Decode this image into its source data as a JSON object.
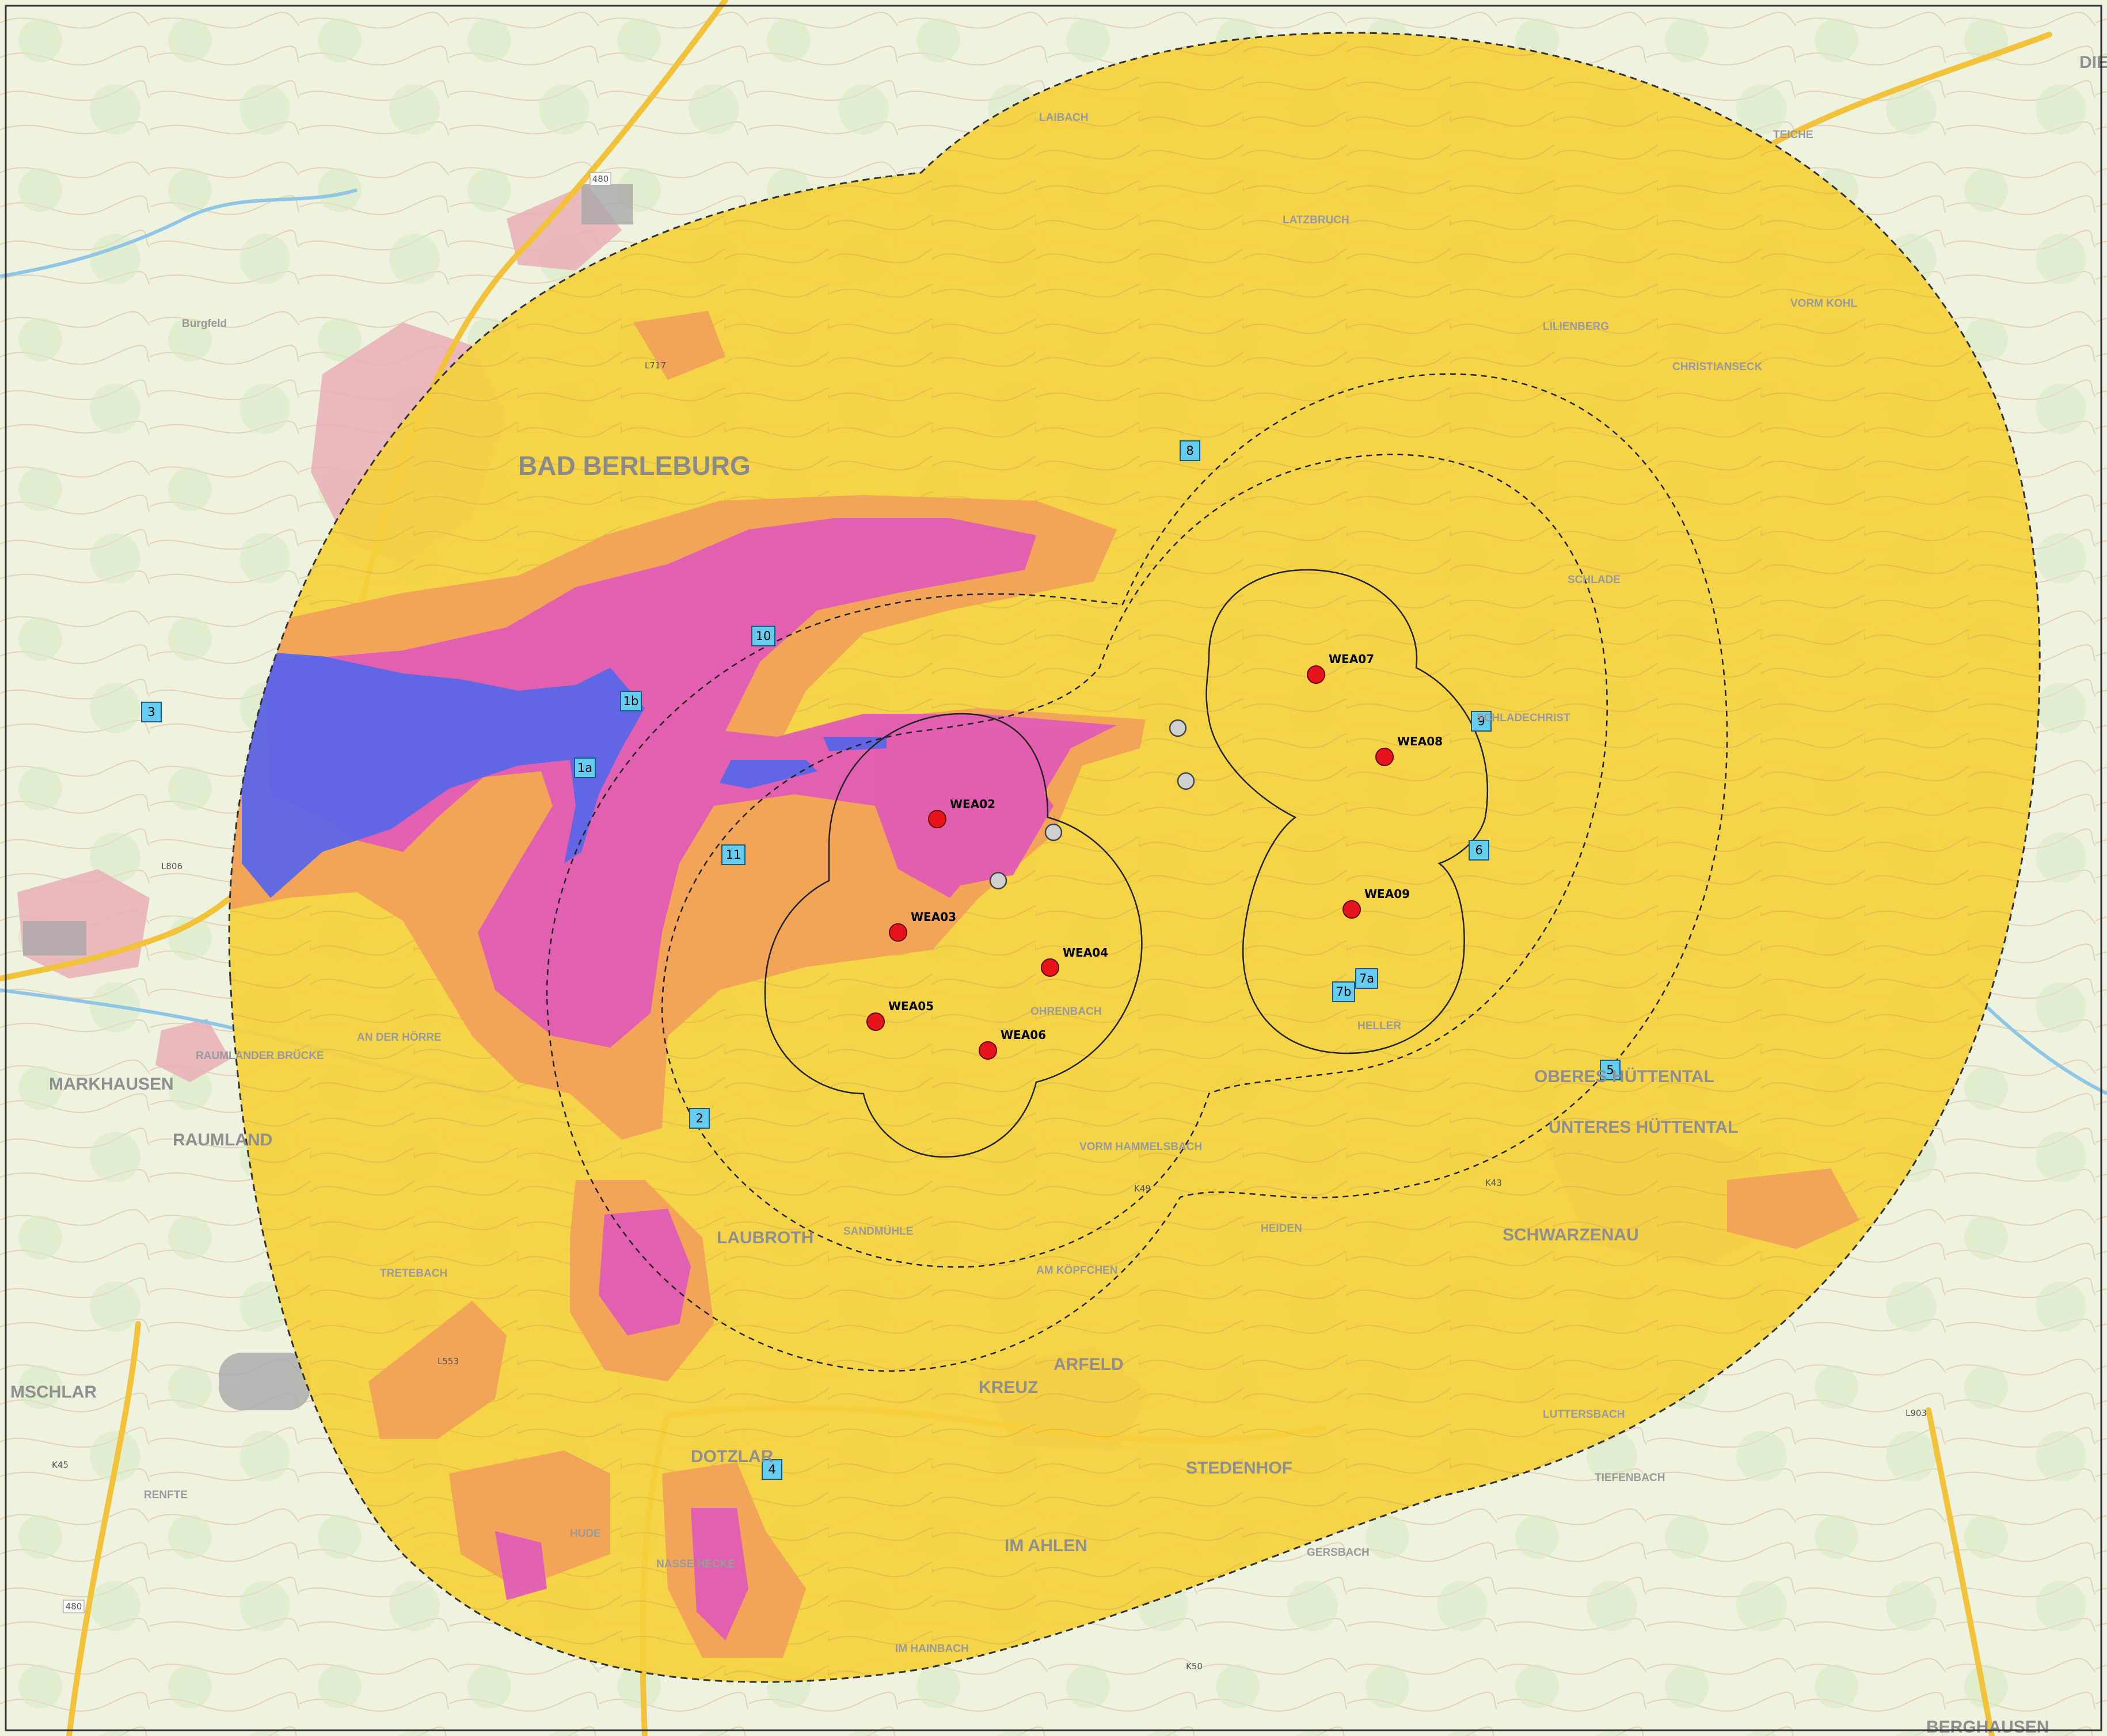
{
  "map": {
    "colors": {
      "topo_background": "#f0f4e4",
      "forest_green": "#d9ecc6",
      "contour": "#c9a98a",
      "water": "#8fc6e6",
      "settlement": "#e9a8b4",
      "zone_yellow": "#f5d23c",
      "zone_orange": "#f2a25a",
      "zone_pink": "#e05ab4",
      "zone_blue": "#5a68e8",
      "turbine_red": "#e8141c",
      "existing_grey": "#cfcfcf",
      "marker_cyan": "#64cdf0"
    },
    "place_names": [
      {
        "id": "bad-berleburg",
        "text": "BAD BERLEBURG"
      },
      {
        "id": "raumland",
        "text": "RAUMLAND"
      },
      {
        "id": "markhausen",
        "text": "MARKHAUSEN"
      },
      {
        "id": "laubroth",
        "text": "LAUBROTH"
      },
      {
        "id": "arfeld",
        "text": "ARFELD"
      },
      {
        "id": "kreuz",
        "text": "KREUZ"
      },
      {
        "id": "dotzlar",
        "text": "DOTZLAR"
      },
      {
        "id": "stedenhof",
        "text": "STEDENHOF"
      },
      {
        "id": "im-ahlen",
        "text": "IM AHLEN"
      },
      {
        "id": "schwarzenau",
        "text": "SCHWARZENAU"
      },
      {
        "id": "oberes-huttental",
        "text": "OBERES HÜTTENTAL"
      },
      {
        "id": "unteres-huttental",
        "text": "UNTERES HÜTTENTAL"
      },
      {
        "id": "an-der-horre",
        "text": "AN DER HÖRRE"
      },
      {
        "id": "tretebach",
        "text": "TRETEBACH"
      },
      {
        "id": "nasse-hecke",
        "text": "NASSE HECKE"
      },
      {
        "id": "hude",
        "text": "HUDE"
      },
      {
        "id": "im-hainbach",
        "text": "IM HAINBACH"
      },
      {
        "id": "gersbach",
        "text": "GERSBACH"
      },
      {
        "id": "luttersbach",
        "text": "LUTTERSBACH"
      },
      {
        "id": "tiefenbach",
        "text": "TIEFENBACH"
      },
      {
        "id": "raumlander-brucke",
        "text": "RAUMLANDER BRÜCKE"
      },
      {
        "id": "laibach",
        "text": "LAIBACH"
      },
      {
        "id": "latzbruch",
        "text": "LATZBRUCH"
      },
      {
        "id": "lilienberg",
        "text": "LILIENBERG"
      },
      {
        "id": "christianseck",
        "text": "CHRISTIANSECK"
      },
      {
        "id": "teiche",
        "text": "TEICHE"
      },
      {
        "id": "schlade",
        "text": "SCHLADE"
      },
      {
        "id": "schladechrist",
        "text": "SCHLADECHRIST"
      },
      {
        "id": "heller",
        "text": "HELLER"
      },
      {
        "id": "ohrenbach",
        "text": "OHRENBACH"
      },
      {
        "id": "vorm-hammelsbach",
        "text": "VORM HAMMELSBACH"
      },
      {
        "id": "am-kopfchen",
        "text": "AM KÖPFCHEN"
      },
      {
        "id": "sandmuhle",
        "text": "SANDMÜHLE"
      },
      {
        "id": "heiden",
        "text": "HEIDEN"
      },
      {
        "id": "renfte",
        "text": "RENFTE"
      },
      {
        "id": "mschlar",
        "text": "MSCHLAR"
      },
      {
        "id": "vorm-kohl",
        "text": "VORM KOHL"
      },
      {
        "id": "dieh-hah",
        "text": "DIEH HAH"
      },
      {
        "id": "bergfeld",
        "text": "Burgfeld"
      },
      {
        "id": "berghausen",
        "text": "BERGHAUSEN"
      }
    ],
    "turbines": [
      {
        "id": "WEA02",
        "label": "WEA02"
      },
      {
        "id": "WEA03",
        "label": "WEA03"
      },
      {
        "id": "WEA04",
        "label": "WEA04"
      },
      {
        "id": "WEA05",
        "label": "WEA05"
      },
      {
        "id": "WEA06",
        "label": "WEA06"
      },
      {
        "id": "WEA07",
        "label": "WEA07"
      },
      {
        "id": "WEA08",
        "label": "WEA08"
      },
      {
        "id": "WEA09",
        "label": "WEA09"
      }
    ],
    "immission_points": [
      "1a",
      "1b",
      "2",
      "3",
      "4",
      "5",
      "6",
      "7a",
      "7b",
      "8",
      "9",
      "10",
      "11"
    ],
    "road_labels": [
      "480",
      "L553",
      "L717",
      "L806",
      "K43",
      "K45",
      "L903",
      "K49",
      "K50"
    ]
  }
}
